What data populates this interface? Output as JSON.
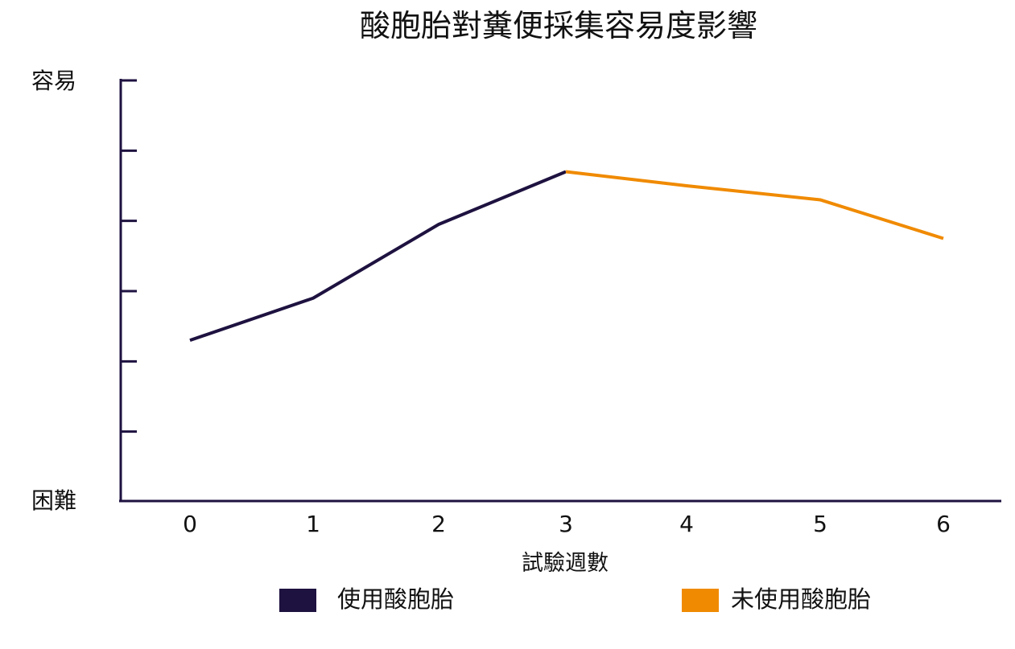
{
  "chart_data": {
    "type": "line",
    "title": "酸胞胎對糞便採集容易度影響",
    "xlabel": "試驗週數",
    "y_top_label": "容易",
    "y_bottom_label": "困難",
    "x": [
      0,
      1,
      2,
      3,
      4,
      5,
      6
    ],
    "xlim": [
      0,
      6
    ],
    "ylim": [
      0,
      6
    ],
    "y_ticks": [
      1,
      2,
      3,
      4,
      5,
      6
    ],
    "grid": false,
    "legend_position": "bottom",
    "series": [
      {
        "name": "使用酸胞胎",
        "color": "#1e1240",
        "points": [
          [
            0,
            2.3
          ],
          [
            1,
            2.9
          ],
          [
            2,
            3.95
          ],
          [
            3,
            4.7
          ]
        ]
      },
      {
        "name": "未使用酸胞胎",
        "color": "#f08a00",
        "points": [
          [
            3,
            4.7
          ],
          [
            4,
            4.5
          ],
          [
            5,
            4.3
          ],
          [
            6,
            3.75
          ]
        ]
      }
    ]
  }
}
